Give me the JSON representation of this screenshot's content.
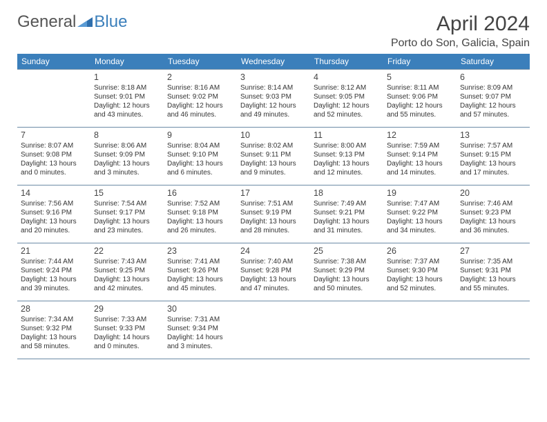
{
  "brand": {
    "part1": "General",
    "part2": "Blue"
  },
  "header": {
    "month": "April 2024",
    "location": "Porto do Son, Galicia, Spain"
  },
  "colors": {
    "header_bg": "#3b7fbb",
    "header_text": "#ffffff",
    "row_border": "#6b8aa5",
    "text": "#333333",
    "logo_gray": "#555555",
    "logo_blue": "#3b7fbb"
  },
  "day_labels": [
    "Sunday",
    "Monday",
    "Tuesday",
    "Wednesday",
    "Thursday",
    "Friday",
    "Saturday"
  ],
  "weeks": [
    [
      {
        "num": "",
        "sunrise": "",
        "sunset": "",
        "daylight": ""
      },
      {
        "num": "1",
        "sunrise": "Sunrise: 8:18 AM",
        "sunset": "Sunset: 9:01 PM",
        "daylight": "Daylight: 12 hours and 43 minutes."
      },
      {
        "num": "2",
        "sunrise": "Sunrise: 8:16 AM",
        "sunset": "Sunset: 9:02 PM",
        "daylight": "Daylight: 12 hours and 46 minutes."
      },
      {
        "num": "3",
        "sunrise": "Sunrise: 8:14 AM",
        "sunset": "Sunset: 9:03 PM",
        "daylight": "Daylight: 12 hours and 49 minutes."
      },
      {
        "num": "4",
        "sunrise": "Sunrise: 8:12 AM",
        "sunset": "Sunset: 9:05 PM",
        "daylight": "Daylight: 12 hours and 52 minutes."
      },
      {
        "num": "5",
        "sunrise": "Sunrise: 8:11 AM",
        "sunset": "Sunset: 9:06 PM",
        "daylight": "Daylight: 12 hours and 55 minutes."
      },
      {
        "num": "6",
        "sunrise": "Sunrise: 8:09 AM",
        "sunset": "Sunset: 9:07 PM",
        "daylight": "Daylight: 12 hours and 57 minutes."
      }
    ],
    [
      {
        "num": "7",
        "sunrise": "Sunrise: 8:07 AM",
        "sunset": "Sunset: 9:08 PM",
        "daylight": "Daylight: 13 hours and 0 minutes."
      },
      {
        "num": "8",
        "sunrise": "Sunrise: 8:06 AM",
        "sunset": "Sunset: 9:09 PM",
        "daylight": "Daylight: 13 hours and 3 minutes."
      },
      {
        "num": "9",
        "sunrise": "Sunrise: 8:04 AM",
        "sunset": "Sunset: 9:10 PM",
        "daylight": "Daylight: 13 hours and 6 minutes."
      },
      {
        "num": "10",
        "sunrise": "Sunrise: 8:02 AM",
        "sunset": "Sunset: 9:11 PM",
        "daylight": "Daylight: 13 hours and 9 minutes."
      },
      {
        "num": "11",
        "sunrise": "Sunrise: 8:00 AM",
        "sunset": "Sunset: 9:13 PM",
        "daylight": "Daylight: 13 hours and 12 minutes."
      },
      {
        "num": "12",
        "sunrise": "Sunrise: 7:59 AM",
        "sunset": "Sunset: 9:14 PM",
        "daylight": "Daylight: 13 hours and 14 minutes."
      },
      {
        "num": "13",
        "sunrise": "Sunrise: 7:57 AM",
        "sunset": "Sunset: 9:15 PM",
        "daylight": "Daylight: 13 hours and 17 minutes."
      }
    ],
    [
      {
        "num": "14",
        "sunrise": "Sunrise: 7:56 AM",
        "sunset": "Sunset: 9:16 PM",
        "daylight": "Daylight: 13 hours and 20 minutes."
      },
      {
        "num": "15",
        "sunrise": "Sunrise: 7:54 AM",
        "sunset": "Sunset: 9:17 PM",
        "daylight": "Daylight: 13 hours and 23 minutes."
      },
      {
        "num": "16",
        "sunrise": "Sunrise: 7:52 AM",
        "sunset": "Sunset: 9:18 PM",
        "daylight": "Daylight: 13 hours and 26 minutes."
      },
      {
        "num": "17",
        "sunrise": "Sunrise: 7:51 AM",
        "sunset": "Sunset: 9:19 PM",
        "daylight": "Daylight: 13 hours and 28 minutes."
      },
      {
        "num": "18",
        "sunrise": "Sunrise: 7:49 AM",
        "sunset": "Sunset: 9:21 PM",
        "daylight": "Daylight: 13 hours and 31 minutes."
      },
      {
        "num": "19",
        "sunrise": "Sunrise: 7:47 AM",
        "sunset": "Sunset: 9:22 PM",
        "daylight": "Daylight: 13 hours and 34 minutes."
      },
      {
        "num": "20",
        "sunrise": "Sunrise: 7:46 AM",
        "sunset": "Sunset: 9:23 PM",
        "daylight": "Daylight: 13 hours and 36 minutes."
      }
    ],
    [
      {
        "num": "21",
        "sunrise": "Sunrise: 7:44 AM",
        "sunset": "Sunset: 9:24 PM",
        "daylight": "Daylight: 13 hours and 39 minutes."
      },
      {
        "num": "22",
        "sunrise": "Sunrise: 7:43 AM",
        "sunset": "Sunset: 9:25 PM",
        "daylight": "Daylight: 13 hours and 42 minutes."
      },
      {
        "num": "23",
        "sunrise": "Sunrise: 7:41 AM",
        "sunset": "Sunset: 9:26 PM",
        "daylight": "Daylight: 13 hours and 45 minutes."
      },
      {
        "num": "24",
        "sunrise": "Sunrise: 7:40 AM",
        "sunset": "Sunset: 9:28 PM",
        "daylight": "Daylight: 13 hours and 47 minutes."
      },
      {
        "num": "25",
        "sunrise": "Sunrise: 7:38 AM",
        "sunset": "Sunset: 9:29 PM",
        "daylight": "Daylight: 13 hours and 50 minutes."
      },
      {
        "num": "26",
        "sunrise": "Sunrise: 7:37 AM",
        "sunset": "Sunset: 9:30 PM",
        "daylight": "Daylight: 13 hours and 52 minutes."
      },
      {
        "num": "27",
        "sunrise": "Sunrise: 7:35 AM",
        "sunset": "Sunset: 9:31 PM",
        "daylight": "Daylight: 13 hours and 55 minutes."
      }
    ],
    [
      {
        "num": "28",
        "sunrise": "Sunrise: 7:34 AM",
        "sunset": "Sunset: 9:32 PM",
        "daylight": "Daylight: 13 hours and 58 minutes."
      },
      {
        "num": "29",
        "sunrise": "Sunrise: 7:33 AM",
        "sunset": "Sunset: 9:33 PM",
        "daylight": "Daylight: 14 hours and 0 minutes."
      },
      {
        "num": "30",
        "sunrise": "Sunrise: 7:31 AM",
        "sunset": "Sunset: 9:34 PM",
        "daylight": "Daylight: 14 hours and 3 minutes."
      },
      {
        "num": "",
        "sunrise": "",
        "sunset": "",
        "daylight": ""
      },
      {
        "num": "",
        "sunrise": "",
        "sunset": "",
        "daylight": ""
      },
      {
        "num": "",
        "sunrise": "",
        "sunset": "",
        "daylight": ""
      },
      {
        "num": "",
        "sunrise": "",
        "sunset": "",
        "daylight": ""
      }
    ]
  ]
}
